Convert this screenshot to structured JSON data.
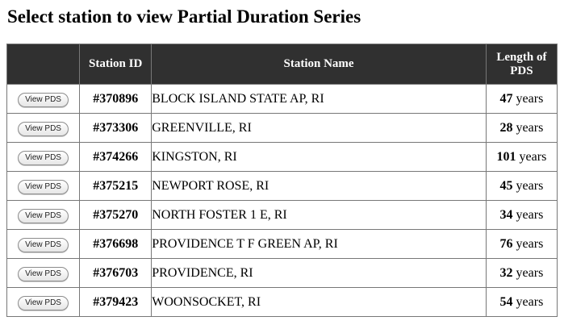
{
  "page": {
    "title": "Select station to view Partial Duration Series"
  },
  "table": {
    "headers": {
      "button": "",
      "station_id": "Station ID",
      "station_name": "Station Name",
      "length_line1": "Length of",
      "length_line2": "PDS"
    },
    "button_label": "View PDS",
    "units": "years",
    "rows": [
      {
        "id": "#370896",
        "name": "BLOCK ISLAND STATE AP, RI",
        "years": "47"
      },
      {
        "id": "#373306",
        "name": "GREENVILLE, RI",
        "years": "28"
      },
      {
        "id": "#374266",
        "name": "KINGSTON, RI",
        "years": "101"
      },
      {
        "id": "#375215",
        "name": "NEWPORT ROSE, RI",
        "years": "45"
      },
      {
        "id": "#375270",
        "name": "NORTH FOSTER 1 E, RI",
        "years": "34"
      },
      {
        "id": "#376698",
        "name": "PROVIDENCE T F GREEN AP, RI",
        "years": "76"
      },
      {
        "id": "#376703",
        "name": "PROVIDENCE, RI",
        "years": "32"
      },
      {
        "id": "#379423",
        "name": "WOONSOCKET, RI",
        "years": "54"
      }
    ]
  }
}
